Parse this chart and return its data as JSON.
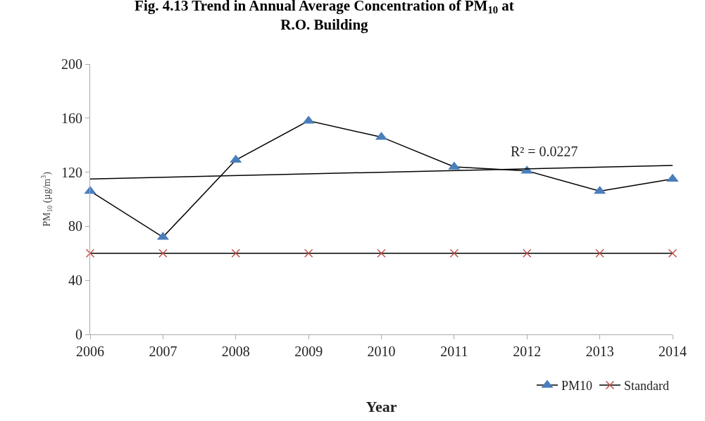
{
  "chart_data": {
    "type": "line",
    "title": "Fig. 4.13 Trend in Annual Average Concentration of PM$_{10}$ at R.O. Building",
    "xlabel": "Year",
    "ylabel": "PM$_{10}$ (µg/m$^{3}$)",
    "x": [
      2006,
      2007,
      2008,
      2009,
      2010,
      2011,
      2012,
      2013,
      2014
    ],
    "series": [
      {
        "name": "PM10",
        "color": "#4a7ebb",
        "marker": "triangle",
        "values": [
          106,
          72,
          129,
          158,
          146,
          124,
          121,
          106,
          115
        ]
      },
      {
        "name": "Standard",
        "color": "#c0504d",
        "marker": "cross",
        "values": [
          60,
          60,
          60,
          60,
          60,
          60,
          60,
          60,
          60
        ]
      },
      {
        "type": "line",
        "x": [
          2006,
          2014
        ],
        "color": "#000000",
        "marker": "none",
        "values": [
          115,
          125
        ]
      }
    ],
    "annotations": [
      "R² = 0.0227"
    ],
    "xlim": [
      2006,
      2014
    ],
    "xticks": [
      2006,
      2007,
      2008,
      2009,
      2010,
      2011,
      2012,
      2013,
      2014
    ],
    "ylim": [
      0,
      200
    ],
    "yticks": [
      0,
      40,
      80,
      120,
      160,
      200
    ],
    "grid": false,
    "legend": "bottom right",
    "line_style": "solid"
  }
}
